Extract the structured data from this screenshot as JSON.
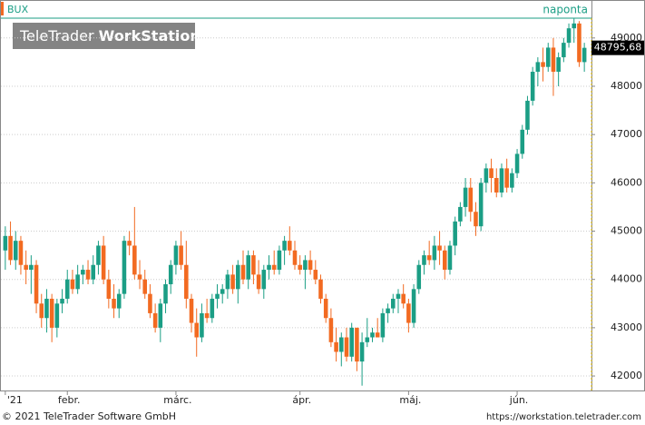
{
  "chart_data": {
    "type": "candlestick",
    "title": "BUX",
    "period": "naponta",
    "watermark": {
      "regular": "TeleTrader",
      "bold": "WorkStation"
    },
    "footer_left": "© 2021 TeleTrader Software GmbH",
    "footer_right": "https://workstation.teletrader.com",
    "up_color": "#1b9e85",
    "down_color": "#f26a21",
    "last_value": 48795.68,
    "last_value_label": "48795,68",
    "ylim": [
      41700,
      49410
    ],
    "yticks": [
      42000,
      43000,
      44000,
      45000,
      46000,
      47000,
      48000,
      49000
    ],
    "grid": true,
    "categories": [
      "'21",
      null,
      null,
      null,
      null,
      null,
      null,
      null,
      null,
      null,
      null,
      null,
      "febr.",
      null,
      null,
      null,
      null,
      null,
      null,
      null,
      null,
      null,
      null,
      null,
      null,
      null,
      null,
      null,
      null,
      null,
      null,
      null,
      null,
      "márc.",
      null,
      null,
      null,
      null,
      null,
      null,
      null,
      null,
      null,
      null,
      null,
      null,
      null,
      null,
      null,
      null,
      null,
      null,
      null,
      null,
      null,
      null,
      null,
      "ápr.",
      null,
      null,
      null,
      null,
      null,
      null,
      null,
      null,
      null,
      null,
      null,
      null,
      null,
      null,
      null,
      null,
      null,
      null,
      null,
      null,
      "máj.",
      null,
      null,
      null,
      null,
      null,
      null,
      null,
      null,
      null,
      null,
      null,
      null,
      null,
      null,
      null,
      null,
      null,
      null,
      null,
      null,
      "jún.",
      null,
      null,
      null,
      null,
      null,
      null,
      null,
      null,
      null,
      null,
      null,
      null,
      null
    ],
    "ohlc": [
      [
        44600,
        45100,
        44200,
        44900
      ],
      [
        44900,
        45200,
        44300,
        44400
      ],
      [
        44400,
        45000,
        44200,
        44800
      ],
      [
        44800,
        44900,
        44100,
        44300
      ],
      [
        44300,
        44600,
        43900,
        44200
      ],
      [
        44200,
        44500,
        43700,
        44300
      ],
      [
        44300,
        44400,
        43300,
        43500
      ],
      [
        43500,
        43700,
        43000,
        43200
      ],
      [
        43200,
        43800,
        42900,
        43600
      ],
      [
        43600,
        43700,
        42700,
        43000
      ],
      [
        43000,
        43600,
        42800,
        43500
      ],
      [
        43500,
        43800,
        43300,
        43600
      ],
      [
        43600,
        44200,
        43500,
        44000
      ],
      [
        44000,
        44200,
        43700,
        43800
      ],
      [
        43800,
        44300,
        43700,
        44100
      ],
      [
        44100,
        44300,
        43900,
        44200
      ],
      [
        44200,
        44400,
        43900,
        44000
      ],
      [
        44000,
        44500,
        43900,
        44300
      ],
      [
        44300,
        44800,
        44100,
        44700
      ],
      [
        44700,
        44900,
        43900,
        44000
      ],
      [
        44000,
        44200,
        43400,
        43600
      ],
      [
        43600,
        43900,
        43200,
        43400
      ],
      [
        43400,
        43800,
        43200,
        43700
      ],
      [
        43700,
        44900,
        43600,
        44800
      ],
      [
        44800,
        45000,
        44500,
        44700
      ],
      [
        44700,
        45500,
        44000,
        44100
      ],
      [
        44100,
        44400,
        43800,
        44000
      ],
      [
        44000,
        44200,
        43600,
        43700
      ],
      [
        43700,
        43900,
        43200,
        43300
      ],
      [
        43300,
        43500,
        42900,
        43000
      ],
      [
        43000,
        43600,
        42700,
        43500
      ],
      [
        43500,
        44000,
        43300,
        43900
      ],
      [
        43900,
        44400,
        43700,
        44300
      ],
      [
        44300,
        44800,
        44100,
        44700
      ],
      [
        44700,
        45000,
        44200,
        44300
      ],
      [
        44300,
        44800,
        43400,
        43600
      ],
      [
        43600,
        43700,
        42900,
        43100
      ],
      [
        43100,
        43400,
        42400,
        42800
      ],
      [
        42800,
        43500,
        42700,
        43300
      ],
      [
        43300,
        43600,
        43100,
        43200
      ],
      [
        43200,
        43700,
        43100,
        43600
      ],
      [
        43600,
        43900,
        43400,
        43700
      ],
      [
        43700,
        43900,
        43500,
        43800
      ],
      [
        43800,
        44200,
        43600,
        44100
      ],
      [
        44100,
        44300,
        43700,
        43800
      ],
      [
        43800,
        44400,
        43500,
        44300
      ],
      [
        44300,
        44600,
        43900,
        44000
      ],
      [
        44000,
        44600,
        43800,
        44500
      ],
      [
        44500,
        44600,
        43900,
        44100
      ],
      [
        44100,
        44400,
        43700,
        43800
      ],
      [
        43800,
        44300,
        43600,
        44200
      ],
      [
        44200,
        44500,
        44000,
        44300
      ],
      [
        44300,
        44600,
        44100,
        44200
      ],
      [
        44200,
        44700,
        44100,
        44600
      ],
      [
        44600,
        44900,
        44300,
        44800
      ],
      [
        44800,
        45100,
        44500,
        44600
      ],
      [
        44600,
        44800,
        44200,
        44300
      ],
      [
        44300,
        44500,
        44100,
        44200
      ],
      [
        44200,
        44500,
        43800,
        44400
      ],
      [
        44400,
        44600,
        44100,
        44200
      ],
      [
        44200,
        44400,
        43900,
        44000
      ],
      [
        44000,
        44100,
        43500,
        43600
      ],
      [
        43600,
        43700,
        43100,
        43200
      ],
      [
        43200,
        43400,
        42600,
        42700
      ],
      [
        42700,
        43000,
        42300,
        42500
      ],
      [
        42500,
        42900,
        42200,
        42800
      ],
      [
        42800,
        43000,
        42300,
        42400
      ],
      [
        42400,
        43100,
        42300,
        43000
      ],
      [
        43000,
        43000,
        42100,
        42300
      ],
      [
        42300,
        42900,
        41800,
        42700
      ],
      [
        42700,
        43200,
        42600,
        42800
      ],
      [
        42800,
        43000,
        42700,
        42900
      ],
      [
        42900,
        43200,
        42800,
        42800
      ],
      [
        42800,
        43400,
        42700,
        43300
      ],
      [
        43300,
        43500,
        43100,
        43400
      ],
      [
        43400,
        43700,
        43300,
        43600
      ],
      [
        43600,
        43800,
        43300,
        43700
      ],
      [
        43700,
        43900,
        43400,
        43500
      ],
      [
        43500,
        43600,
        42900,
        43100
      ],
      [
        43100,
        43900,
        43000,
        43800
      ],
      [
        43800,
        44400,
        43700,
        44300
      ],
      [
        44300,
        44600,
        44100,
        44500
      ],
      [
        44500,
        44800,
        44300,
        44400
      ],
      [
        44400,
        44900,
        44200,
        44700
      ],
      [
        44700,
        45000,
        44300,
        44600
      ],
      [
        44600,
        44700,
        44000,
        44200
      ],
      [
        44200,
        44800,
        44100,
        44700
      ],
      [
        44700,
        45300,
        44500,
        45200
      ],
      [
        45200,
        45600,
        45100,
        45500
      ],
      [
        45500,
        46100,
        45300,
        45900
      ],
      [
        45900,
        46100,
        45200,
        45400
      ],
      [
        45400,
        45600,
        44900,
        45100
      ],
      [
        45100,
        46100,
        45000,
        46000
      ],
      [
        46000,
        46400,
        45800,
        46300
      ],
      [
        46300,
        46500,
        45800,
        46100
      ],
      [
        46100,
        46300,
        45700,
        45800
      ],
      [
        45800,
        46400,
        45700,
        46300
      ],
      [
        46300,
        46500,
        45800,
        45900
      ],
      [
        45900,
        46300,
        45800,
        46200
      ],
      [
        46200,
        46700,
        46100,
        46600
      ],
      [
        46600,
        47200,
        46500,
        47100
      ],
      [
        47100,
        47800,
        47000,
        47700
      ],
      [
        47700,
        48400,
        47600,
        48300
      ],
      [
        48300,
        48600,
        48000,
        48500
      ],
      [
        48500,
        48800,
        48100,
        48400
      ],
      [
        48400,
        48900,
        48300,
        48800
      ],
      [
        48800,
        49000,
        47800,
        48300
      ],
      [
        48300,
        48700,
        48000,
        48600
      ],
      [
        48600,
        49000,
        48500,
        48900
      ],
      [
        48900,
        49300,
        48800,
        49200
      ],
      [
        49200,
        49400,
        48900,
        49300
      ],
      [
        49300,
        49350,
        48400,
        48500
      ],
      [
        48500,
        48900,
        48300,
        48795.68
      ]
    ]
  }
}
